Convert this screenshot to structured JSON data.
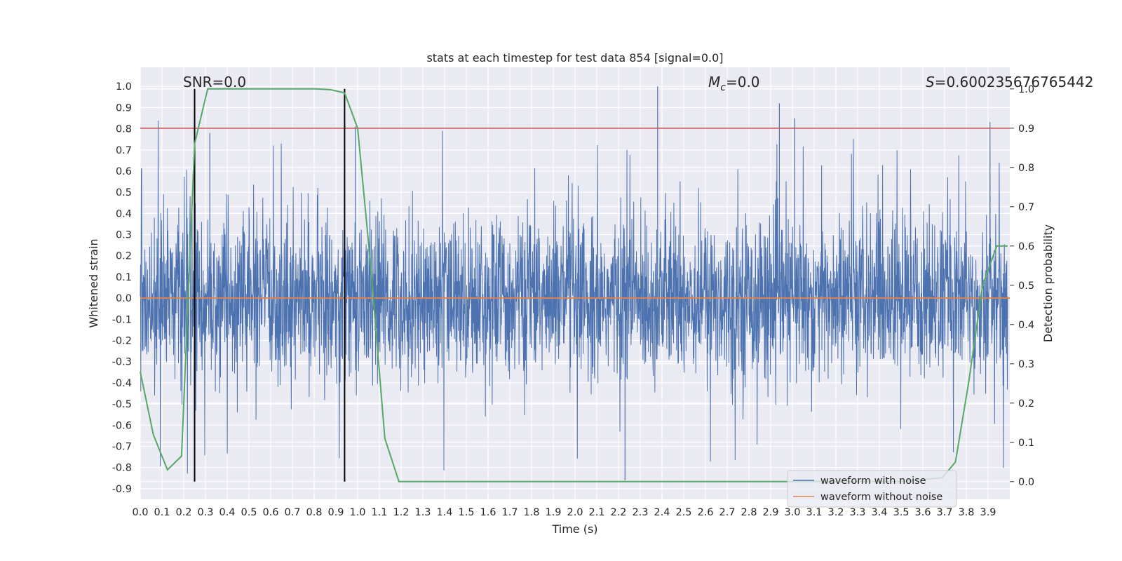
{
  "chart_data": {
    "type": "line",
    "title": "stats at each timestep for test data 854 [signal=0.0]",
    "xlabel": "Time (s)",
    "ylabel": "Whitened strain",
    "y2label": "Detection probability",
    "xlim": [
      0.0,
      4.0
    ],
    "ylim": [
      -0.95,
      1.09
    ],
    "y2lim": [
      -0.045,
      1.055
    ],
    "xticks": [
      "0.0",
      "0.1",
      "0.2",
      "0.3",
      "0.4",
      "0.5",
      "0.6",
      "0.7",
      "0.8",
      "0.9",
      "1.0",
      "1.1",
      "1.2",
      "1.3",
      "1.4",
      "1.5",
      "1.6",
      "1.7",
      "1.8",
      "1.9",
      "2.0",
      "2.1",
      "2.2",
      "2.3",
      "2.4",
      "2.5",
      "2.6",
      "2.7",
      "2.8",
      "2.9",
      "3.0",
      "3.1",
      "3.2",
      "3.3",
      "3.4",
      "3.5",
      "3.6",
      "3.7",
      "3.8",
      "3.9"
    ],
    "yticks": [
      "1.0",
      "0.9",
      "0.8",
      "0.7",
      "0.6",
      "0.5",
      "0.4",
      "0.3",
      "0.2",
      "0.1",
      "0.0",
      "-0.1",
      "-0.2",
      "-0.3",
      "-0.4",
      "-0.5",
      "-0.6",
      "-0.7",
      "-0.8",
      "-0.9"
    ],
    "y2ticks": [
      "1.0",
      "0.9",
      "0.8",
      "0.7",
      "0.6",
      "0.5",
      "0.4",
      "0.3",
      "0.2",
      "0.1",
      "0.0"
    ],
    "grid": true,
    "legend_position": "bottom-right",
    "annotations": {
      "snr": "SNR=0.0",
      "mc_symbol": "M",
      "mc_sub": "c",
      "mc_value": "=0.0",
      "s_symbol": "S",
      "s_value": "=0.600235676765442"
    },
    "series": [
      {
        "name": "waveform with noise",
        "color": "#4c72b0",
        "description": "dense noise trace, mostly within ±0.45 with spikes to about 1.0 and -0.85"
      },
      {
        "name": "waveform without noise",
        "color": "#dd8452",
        "y": 0.0
      }
    ],
    "detection_probability": {
      "color": "#55a868",
      "x": [
        0.0,
        0.06,
        0.125,
        0.19,
        0.25,
        0.31,
        0.375,
        0.44,
        0.5,
        0.56,
        0.625,
        0.69,
        0.75,
        0.81,
        0.875,
        0.94,
        1.0,
        1.06,
        1.125,
        1.19,
        1.25,
        1.5,
        2.0,
        2.5,
        3.0,
        3.5,
        3.69,
        3.75,
        3.81,
        3.875,
        3.94,
        3.99
      ],
      "y": [
        0.28,
        0.12,
        0.03,
        0.065,
        0.86,
        1.0,
        1.0,
        1.0,
        1.0,
        1.0,
        1.0,
        1.0,
        1.0,
        1.0,
        0.998,
        0.99,
        0.9,
        0.55,
        0.11,
        0.0,
        0.0,
        0.0,
        0.0,
        0.0,
        0.0,
        0.0,
        0.01,
        0.05,
        0.25,
        0.5,
        0.6,
        0.6
      ]
    },
    "threshold": {
      "color": "#c44e52",
      "y2": 0.9
    },
    "vertical_markers": {
      "color": "#000000",
      "x": [
        0.25,
        0.94
      ]
    }
  }
}
